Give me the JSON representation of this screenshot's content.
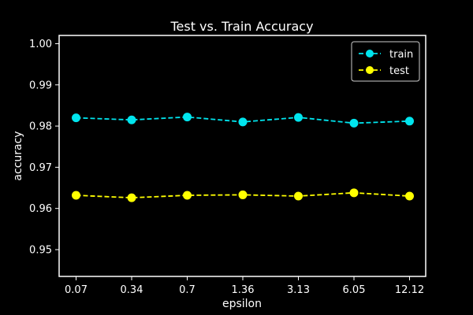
{
  "chart_data": {
    "type": "line",
    "title": "Test vs. Train Accuracy",
    "xlabel": "epsilon",
    "ylabel": "accuracy",
    "categories": [
      "0.07",
      "0.34",
      "0.7",
      "1.36",
      "3.13",
      "6.05",
      "12.12"
    ],
    "ylim": [
      0.9435,
      1.002
    ],
    "yticks": [
      "0.95",
      "0.96",
      "0.97",
      "0.98",
      "0.99",
      "1.00"
    ],
    "ytick_values": [
      0.95,
      0.96,
      0.97,
      0.98,
      0.99,
      1.0
    ],
    "grid": false,
    "legend_position": "top-right",
    "series": [
      {
        "name": "train",
        "color": "#00e5ee",
        "line_style": "dashed",
        "marker": "circle",
        "values": [
          0.982,
          0.9815,
          0.9822,
          0.981,
          0.9821,
          0.9807,
          0.9812
        ]
      },
      {
        "name": "test",
        "color": "#ffff00",
        "line_style": "dashed",
        "marker": "circle",
        "values": [
          0.9632,
          0.9626,
          0.9632,
          0.9633,
          0.963,
          0.9638,
          0.963
        ]
      }
    ]
  },
  "colors": {
    "background": "#000000",
    "foreground": "#ffffff"
  }
}
